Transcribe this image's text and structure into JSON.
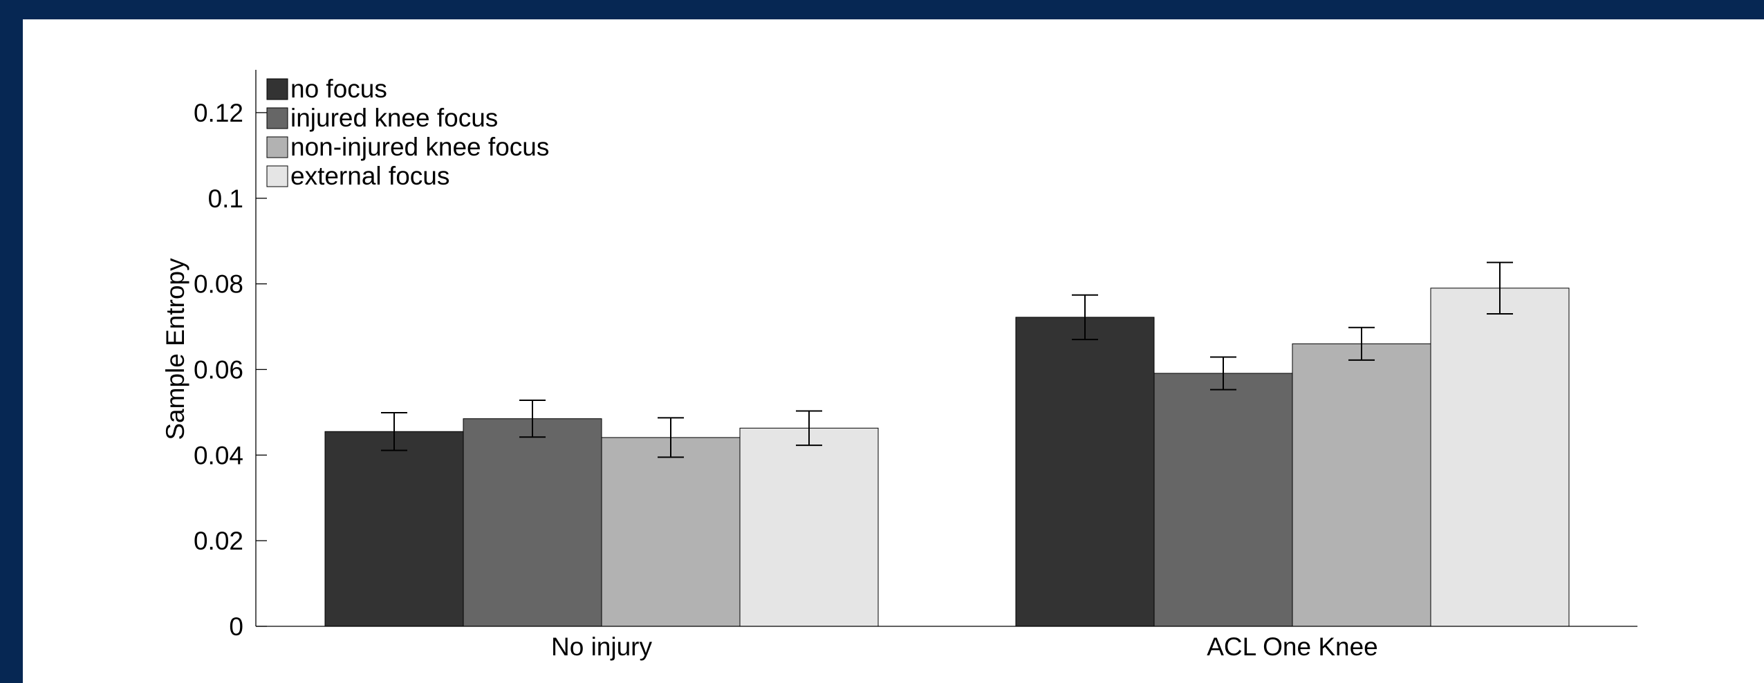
{
  "chart_data": {
    "type": "bar",
    "categories": [
      "No injury",
      "ACL One Knee"
    ],
    "series": [
      {
        "name": "no focus",
        "color": "#333333",
        "values": [
          0.0455,
          0.0722
        ],
        "errors": [
          0.0044,
          0.0052
        ]
      },
      {
        "name": "injured knee focus",
        "color": "#666666",
        "values": [
          0.0485,
          0.0591
        ],
        "errors": [
          0.0043,
          0.0038
        ]
      },
      {
        "name": "non-injured knee focus",
        "color": "#b2b2b2",
        "values": [
          0.0441,
          0.066
        ],
        "errors": [
          0.0046,
          0.0038
        ]
      },
      {
        "name": "external focus",
        "color": "#e5e5e5",
        "values": [
          0.0463,
          0.079
        ],
        "errors": [
          0.004,
          0.006
        ]
      }
    ],
    "ylabel": "Sample Entropy",
    "xlabel": "",
    "ylim": [
      0,
      0.13
    ],
    "yticks": [
      {
        "value": 0,
        "label": "0"
      },
      {
        "value": 0.02,
        "label": "0.02"
      },
      {
        "value": 0.04,
        "label": "0.04"
      },
      {
        "value": 0.06,
        "label": "0.06"
      },
      {
        "value": 0.08,
        "label": "0.08"
      },
      {
        "value": 0.1,
        "label": "0.1"
      },
      {
        "value": 0.12,
        "label": "0.12"
      }
    ],
    "legend_position": "top-left",
    "grid": false
  }
}
